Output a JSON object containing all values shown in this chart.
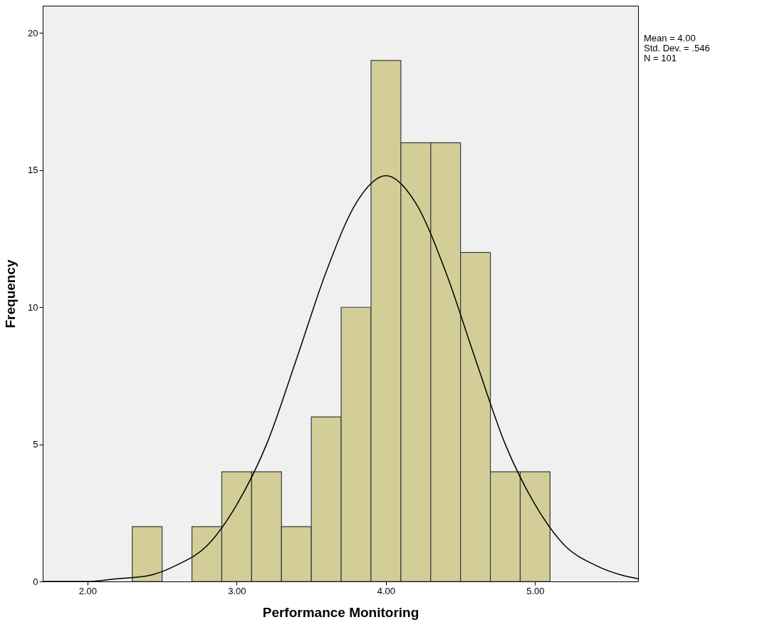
{
  "chart_data": {
    "type": "histogram",
    "xlabel": "Performance Monitoring",
    "ylabel": "Frequency",
    "bins": [
      2.3,
      2.5,
      2.7,
      2.9,
      3.1,
      3.3,
      3.5,
      3.7,
      3.9,
      4.1,
      4.3,
      4.5,
      4.7,
      4.9,
      5.1
    ],
    "values": [
      2,
      0,
      2,
      4,
      4,
      2,
      6,
      10,
      19,
      16,
      16,
      12,
      4,
      4
    ],
    "color": "#d3ce98",
    "series": [
      {
        "type": "line",
        "color": "#000000",
        "x": [
          1.7,
          2.0,
          2.2,
          2.4,
          2.6,
          2.8,
          3.0,
          3.2,
          3.4,
          3.6,
          3.8,
          4.0,
          4.2,
          4.4,
          4.6,
          4.8,
          5.0,
          5.2,
          5.4,
          5.6,
          5.69
        ],
        "values": [
          0.0,
          0.0,
          0.1,
          0.2,
          0.6,
          1.3,
          2.8,
          5.0,
          8.1,
          11.3,
          13.8,
          14.8,
          13.8,
          11.3,
          8.1,
          5.0,
          2.8,
          1.3,
          0.6,
          0.2,
          0.1
        ]
      }
    ],
    "xlim": [
      1.7,
      5.69
    ],
    "ylim": [
      0,
      21
    ],
    "xticks": [
      {
        "value": 2,
        "label": "2.00"
      },
      {
        "value": 3,
        "label": "3.00"
      },
      {
        "value": 4,
        "label": "4.00"
      },
      {
        "value": 5,
        "label": "5.00"
      }
    ],
    "yticks": [
      0,
      5,
      10,
      15,
      20
    ],
    "grid": false,
    "annotations": [
      "Mean = 4.00",
      "Std. Dev. = .546",
      "N = 101"
    ]
  }
}
